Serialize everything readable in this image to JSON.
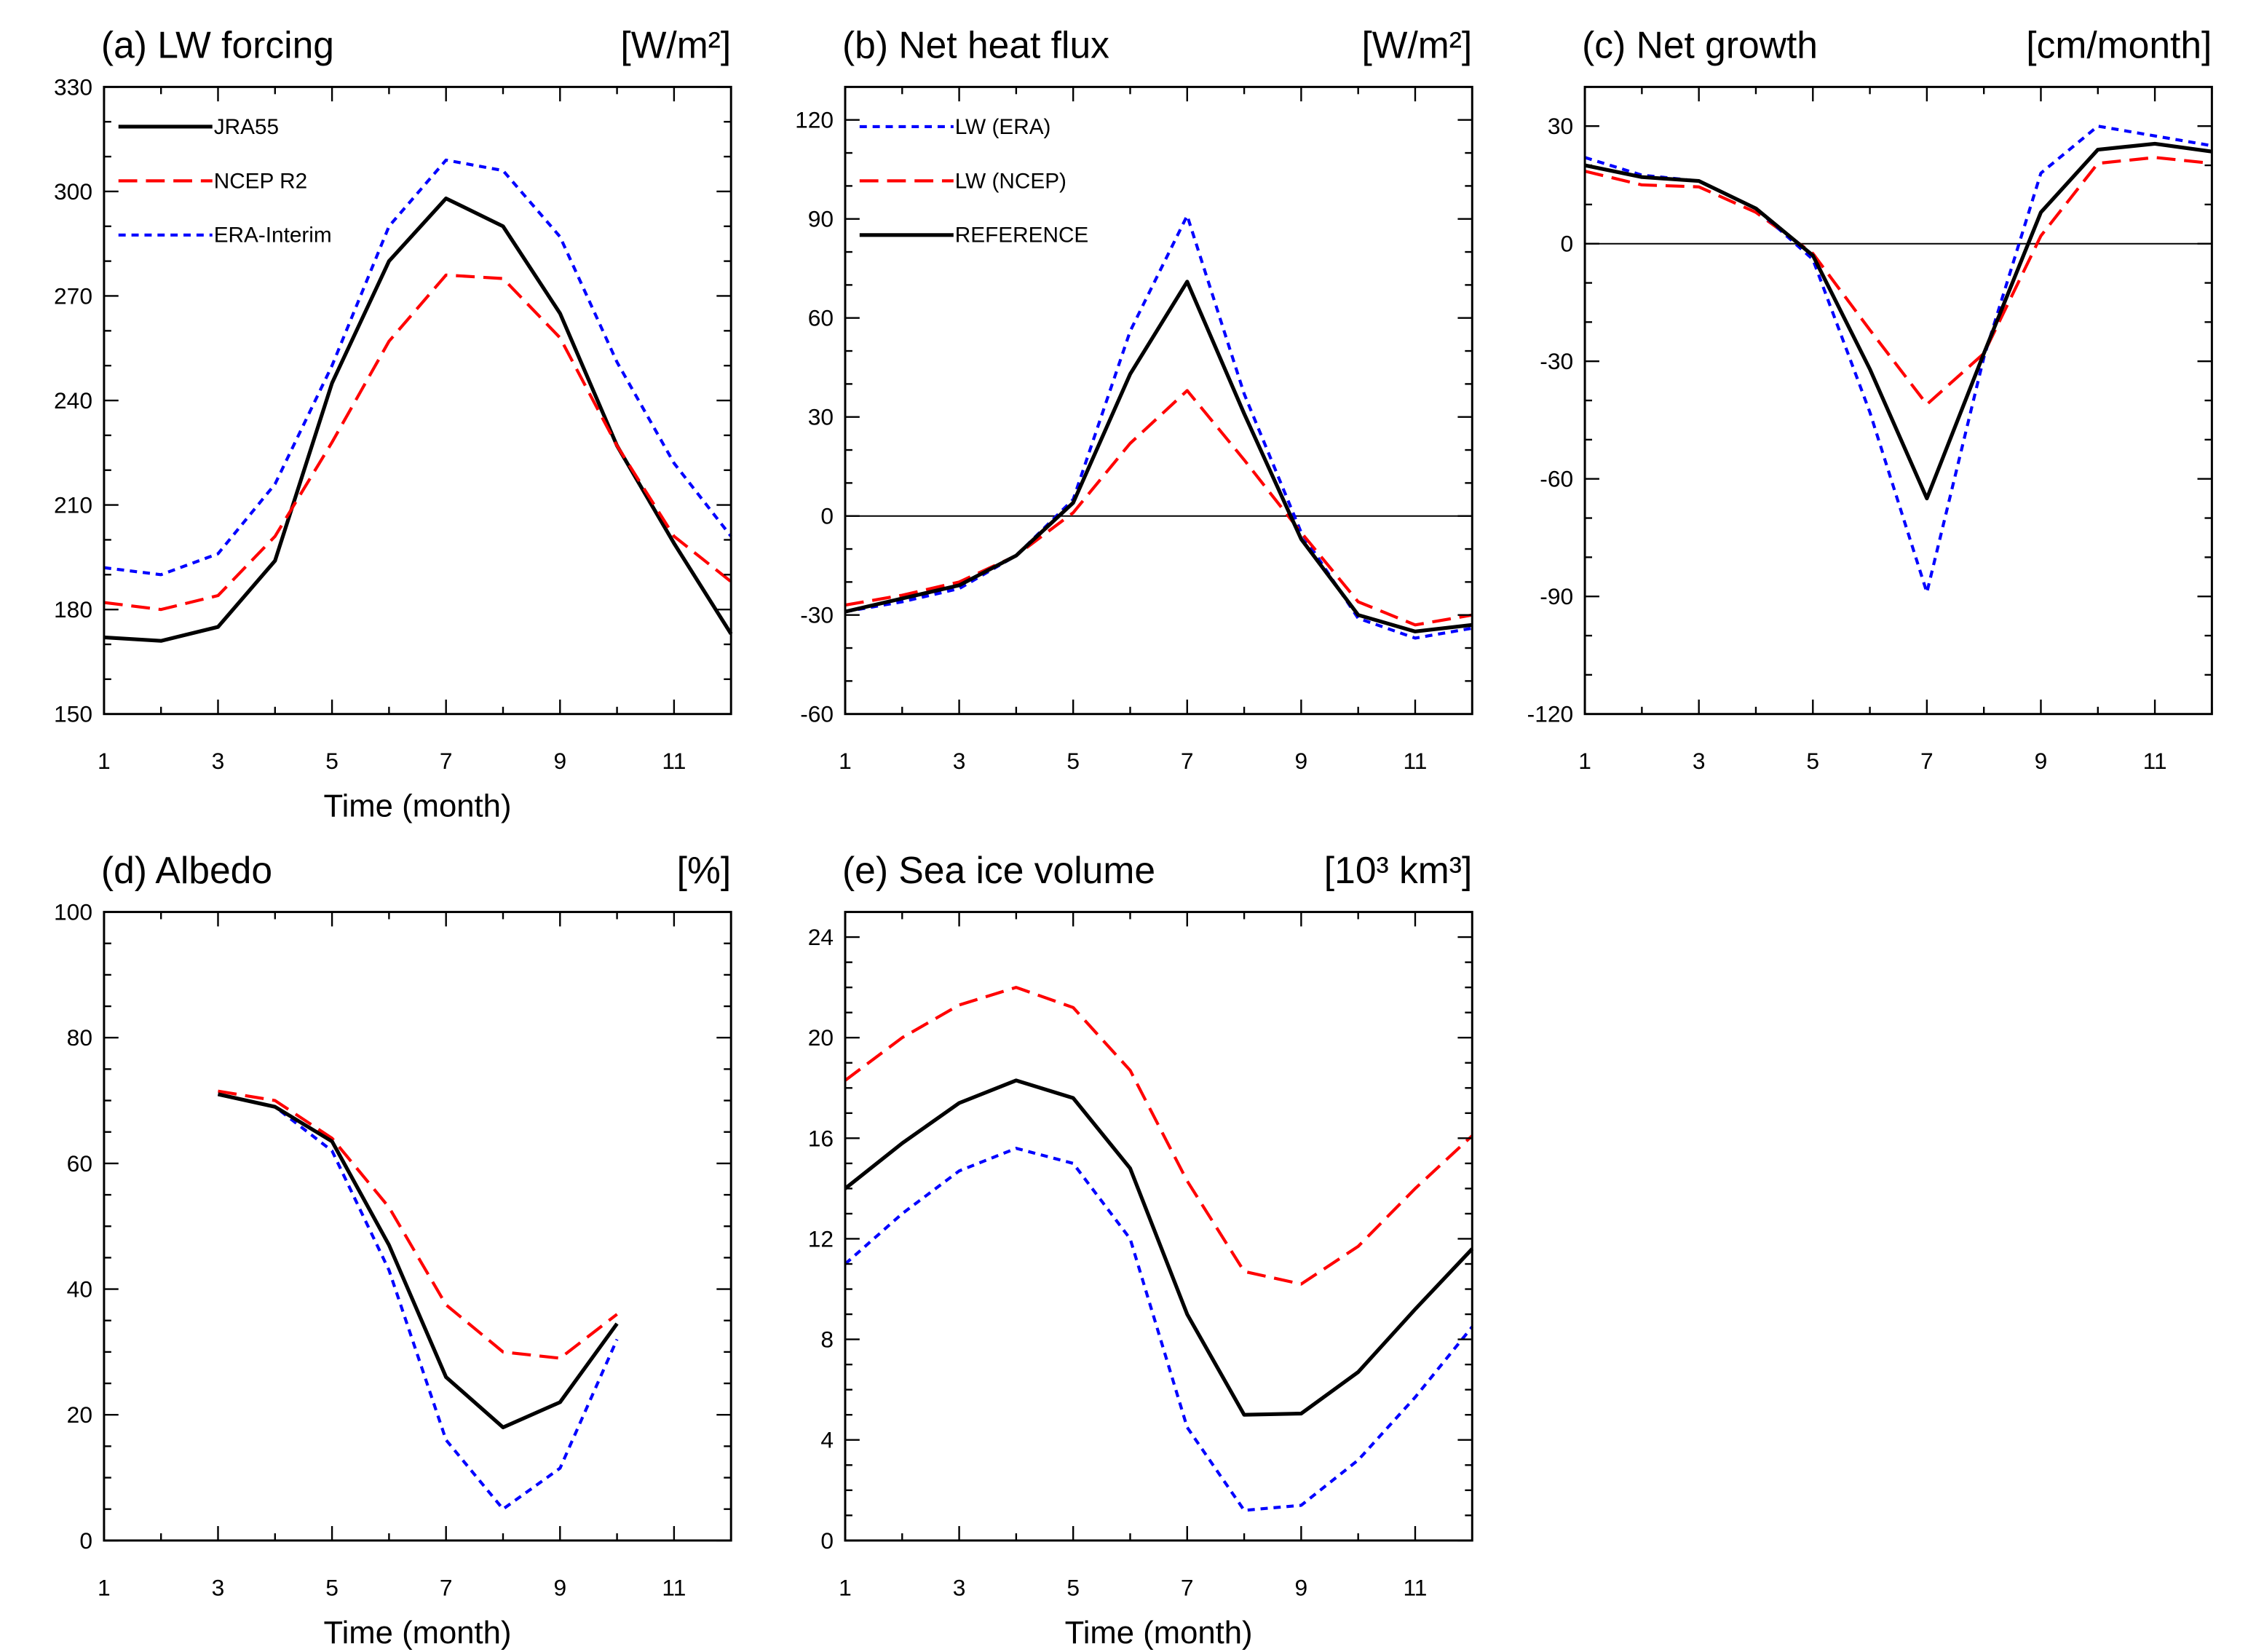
{
  "chart_data": [
    {
      "type": "line",
      "title": "(a) LW forcing",
      "units": "[W/m²]",
      "xlabel": "Time (month)",
      "xlim": [
        1,
        12
      ],
      "xticks": [
        1,
        3,
        5,
        7,
        9,
        11
      ],
      "xticklabels": [
        "1",
        "3",
        "5",
        "7",
        "9",
        "11"
      ],
      "xminor_step": 1,
      "ylim": [
        150,
        330
      ],
      "yticks": [
        150,
        180,
        210,
        240,
        270,
        300,
        330
      ],
      "yticklabels": [
        "150",
        "180",
        "210",
        "240",
        "270",
        "300",
        "330"
      ],
      "yminor_step": 10,
      "legend_position": "top-left",
      "x": [
        1,
        2,
        3,
        4,
        5,
        6,
        7,
        8,
        9,
        10,
        11,
        12
      ],
      "series": [
        {
          "name": "JRA55",
          "color": "#000000",
          "values": [
            172,
            171,
            175,
            194,
            245,
            280,
            298,
            290,
            265,
            227,
            199,
            173
          ]
        },
        {
          "name": "NCEP R2",
          "color": "#ff0000",
          "values": [
            182,
            180,
            184,
            201,
            228,
            257,
            276,
            275,
            258,
            227,
            201,
            188
          ]
        },
        {
          "name": "ERA-Interim",
          "color": "#0000ff",
          "values": [
            192,
            190,
            196,
            216,
            250,
            290,
            309,
            306,
            287,
            251,
            222,
            201
          ]
        }
      ]
    },
    {
      "type": "line",
      "title": "(b) Net heat flux",
      "units": "[W/m²]",
      "xlim": [
        1,
        12
      ],
      "xticks": [
        1,
        3,
        5,
        7,
        9,
        11
      ],
      "xticklabels": [
        "1",
        "3",
        "5",
        "7",
        "9",
        "11"
      ],
      "xminor_step": 1,
      "ylim": [
        -60,
        130
      ],
      "yticks": [
        -60,
        -30,
        0,
        30,
        60,
        90,
        120
      ],
      "yticklabels": [
        "-60",
        "-30",
        "0",
        "30",
        "60",
        "90",
        "120"
      ],
      "yminor_step": 10,
      "hline": 0,
      "legend_position": "top-left",
      "x": [
        1,
        2,
        3,
        4,
        5,
        6,
        7,
        8,
        9,
        10,
        11,
        12
      ],
      "series": [
        {
          "name": "LW (ERA)",
          "color": "#0000ff",
          "values": [
            -29,
            -26,
            -22,
            -12,
            5,
            56,
            91,
            37,
            -5,
            -31,
            -37,
            -34
          ]
        },
        {
          "name": "LW (NCEP)",
          "color": "#ff0000",
          "values": [
            -27,
            -24,
            -20,
            -12,
            1,
            22,
            38,
            17,
            -5,
            -26,
            -33,
            -30
          ]
        },
        {
          "name": "REFERENCE",
          "color": "#000000",
          "values": [
            -29,
            -25,
            -21,
            -12,
            4,
            43,
            71,
            31,
            -7,
            -30,
            -35,
            -33
          ]
        }
      ]
    },
    {
      "type": "line",
      "title": "(c) Net growth",
      "units": "[cm/month]",
      "xlim": [
        1,
        12
      ],
      "xticks": [
        1,
        3,
        5,
        7,
        9,
        11
      ],
      "xticklabels": [
        "1",
        "3",
        "5",
        "7",
        "9",
        "11"
      ],
      "xminor_step": 1,
      "ylim": [
        -120,
        40
      ],
      "yticks": [
        -120,
        -90,
        -60,
        -30,
        0,
        30
      ],
      "yticklabels": [
        "-120",
        "-90",
        "-60",
        "-30",
        "0",
        "30"
      ],
      "yminor_step": 10,
      "hline": 0,
      "x": [
        1,
        2,
        3,
        4,
        5,
        6,
        7,
        8,
        9,
        10,
        11,
        12
      ],
      "series": [
        {
          "color": "#ff0000",
          "values": [
            18.5,
            15,
            14.5,
            8,
            -2.5,
            -22,
            -41,
            -28,
            2,
            20.5,
            22,
            20.5
          ]
        },
        {
          "color": "#0000ff",
          "values": [
            22,
            17.5,
            16,
            9,
            -4,
            -43,
            -89,
            -29,
            18,
            30,
            27.5,
            25
          ]
        },
        {
          "color": "#000000",
          "values": [
            20,
            17,
            16,
            9,
            -3,
            -32,
            -65,
            -28,
            8,
            24,
            25.5,
            23.5
          ]
        }
      ]
    },
    {
      "type": "line",
      "title": "(d) Albedo",
      "units": "[%]",
      "xlabel": "Time (month)",
      "xlim": [
        1,
        12
      ],
      "xticks": [
        1,
        3,
        5,
        7,
        9,
        11
      ],
      "xticklabels": [
        "1",
        "3",
        "5",
        "7",
        "9",
        "11"
      ],
      "xminor_step": 1,
      "ylim": [
        0,
        100
      ],
      "yticks": [
        0,
        20,
        40,
        60,
        80,
        100
      ],
      "yticklabels": [
        "0",
        "20",
        "40",
        "60",
        "80",
        "100"
      ],
      "yminor_step": 5,
      "x": [
        3,
        4,
        5,
        6,
        7,
        8,
        9,
        10
      ],
      "series": [
        {
          "color": "#ff0000",
          "values": [
            71.5,
            70,
            64,
            53,
            37.5,
            30,
            29,
            36
          ]
        },
        {
          "color": "#0000ff",
          "values": [
            71,
            69,
            62,
            43,
            16,
            5,
            11.5,
            32
          ]
        },
        {
          "color": "#000000",
          "values": [
            71,
            69,
            63.5,
            47,
            26,
            18,
            22,
            34.5
          ]
        }
      ]
    },
    {
      "type": "line",
      "title": "(e) Sea ice volume",
      "units": "[10³ km³]",
      "xlabel": "Time (month)",
      "xlim": [
        1,
        12
      ],
      "xticks": [
        1,
        3,
        5,
        7,
        9,
        11
      ],
      "xticklabels": [
        "1",
        "3",
        "5",
        "7",
        "9",
        "11"
      ],
      "xminor_step": 1,
      "ylim": [
        0,
        25
      ],
      "yticks": [
        0,
        4,
        8,
        12,
        16,
        20,
        24
      ],
      "yticklabels": [
        "0",
        "4",
        "8",
        "12",
        "16",
        "20",
        "24"
      ],
      "yminor_step": 1,
      "x": [
        1,
        2,
        3,
        4,
        5,
        6,
        7,
        8,
        9,
        10,
        11,
        12
      ],
      "series": [
        {
          "color": "#ff0000",
          "values": [
            18.3,
            20,
            21.3,
            22,
            21.2,
            18.7,
            14.3,
            10.7,
            10.2,
            11.7,
            14,
            16.1
          ]
        },
        {
          "color": "#0000ff",
          "values": [
            11,
            13,
            14.7,
            15.6,
            15,
            12,
            4.5,
            1.2,
            1.4,
            3.2,
            5.7,
            8.5
          ]
        },
        {
          "color": "#000000",
          "values": [
            14,
            15.8,
            17.4,
            18.3,
            17.6,
            14.8,
            9,
            5,
            5.05,
            6.7,
            9.2,
            11.6
          ]
        }
      ]
    }
  ]
}
